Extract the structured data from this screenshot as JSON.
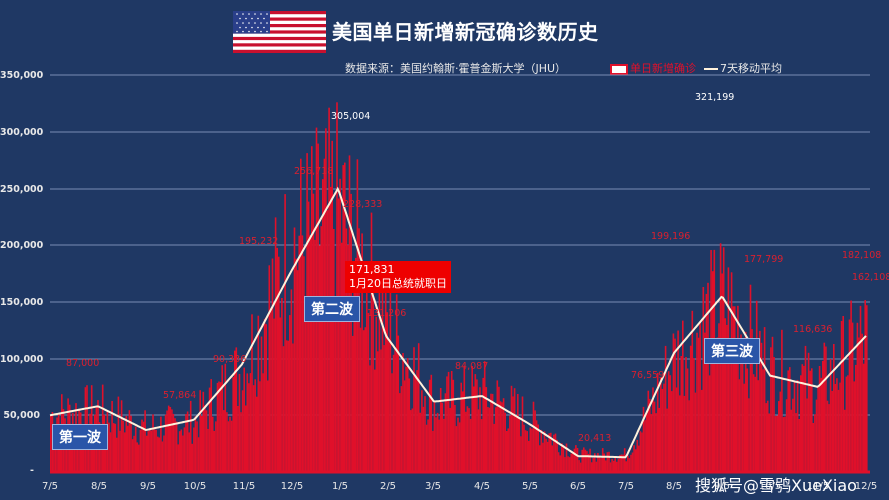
{
  "title": "美国单日新增新冠确诊数历史",
  "source": "数据来源：美国约翰斯·霍普金斯大学（JHU）",
  "legend": {
    "bar": "单日新增确诊",
    "line": "7天移动平均"
  },
  "callout": {
    "value": "171,831",
    "label": "1月20日总统就职日"
  },
  "waves": {
    "first": "第一波",
    "second": "第二波",
    "third": "第三波"
  },
  "watermark": "搜狐号@雪鸮XueXiao",
  "yticks": [
    "350,000",
    "300,000",
    "250,000",
    "200,000",
    "150,000",
    "100,000",
    "50,000",
    "-"
  ],
  "xticks": [
    "7/5",
    "8/5",
    "9/5",
    "10/5",
    "11/5",
    "12/5",
    "1/5",
    "2/5",
    "3/5",
    "4/5",
    "5/5",
    "6/5",
    "7/5",
    "8/5",
    "9/5",
    "10/5",
    "11/5",
    "12/5"
  ],
  "annotations": {
    "a1": "87,000",
    "a2": "57,864",
    "a3": "90,336",
    "a4": "195,232",
    "a5": "256,718",
    "a6": "305,004",
    "a7": "228,333",
    "a8": "131,206",
    "a9": "84,087",
    "a10": "20,413",
    "a11": "76,559",
    "a12": "199,196",
    "a13": "321,199",
    "a14": "177,799",
    "a15": "116,636",
    "a16": "182,108",
    "a17": "162,108"
  },
  "colors": {
    "background": "#1f3864",
    "bar": "#e0102a",
    "line": "#fff2dc",
    "grid": "#8fa3c8"
  },
  "chart_data": {
    "type": "bar",
    "title": "美国单日新增新冠确诊数历史",
    "subtitle": "数据来源：美国约翰斯·霍普金斯大学（JHU）",
    "xlabel": "",
    "ylabel": "",
    "ylim": [
      0,
      350000
    ],
    "grid": true,
    "legend_position": "top-right",
    "categories": [
      "7/5",
      "8/5",
      "9/5",
      "10/5",
      "11/5",
      "12/5",
      "1/5",
      "2/5",
      "3/5",
      "4/5",
      "5/5",
      "6/5",
      "7/5",
      "8/5",
      "9/5",
      "10/5",
      "11/5",
      "12/5"
    ],
    "series": [
      {
        "name": "单日新增确诊",
        "type": "bar",
        "values": [
          50000,
          55000,
          38000,
          45000,
          90000,
          195000,
          230000,
          130000,
          60000,
          70000,
          45000,
          15000,
          15000,
          100000,
          150000,
          90000,
          75000,
          120000
        ]
      },
      {
        "name": "7天移动平均",
        "type": "line",
        "values": [
          50000,
          58000,
          37000,
          46000,
          95000,
          175000,
          250000,
          120000,
          62000,
          67000,
          42000,
          14000,
          13000,
          105000,
          155000,
          85000,
          75000,
          120000
        ]
      }
    ],
    "annotations": [
      {
        "label": "87,000",
        "x": "7/5~8/5"
      },
      {
        "label": "57,864",
        "x": "9/5~10/5"
      },
      {
        "label": "90,336",
        "x": "10/5~11/5"
      },
      {
        "label": "195,232",
        "x": "11/5"
      },
      {
        "label": "256,718",
        "x": "12/5"
      },
      {
        "label": "305,004",
        "x": "1/5"
      },
      {
        "label": "228,333",
        "x": "1/5"
      },
      {
        "label": "171,831 1月20日总统就职日",
        "x": "1/20"
      },
      {
        "label": "131,206",
        "x": "1/5~2/5"
      },
      {
        "label": "84,087",
        "x": "3/5~4/5"
      },
      {
        "label": "20,413",
        "x": "6/5"
      },
      {
        "label": "76,559",
        "x": "7/5~8/5"
      },
      {
        "label": "199,196",
        "x": "8/5"
      },
      {
        "label": "321,199",
        "x": "8/5~9/5"
      },
      {
        "label": "177,799",
        "x": "9/5"
      },
      {
        "label": "116,636",
        "x": "10/5~11/5"
      },
      {
        "label": "182,108",
        "x": "12/5"
      },
      {
        "label": "162,108",
        "x": "12/5"
      },
      {
        "label": "第一波",
        "x": "7/5"
      },
      {
        "label": "第二波",
        "x": "12/5"
      },
      {
        "label": "第三波",
        "x": "8/5~9/5"
      }
    ]
  }
}
